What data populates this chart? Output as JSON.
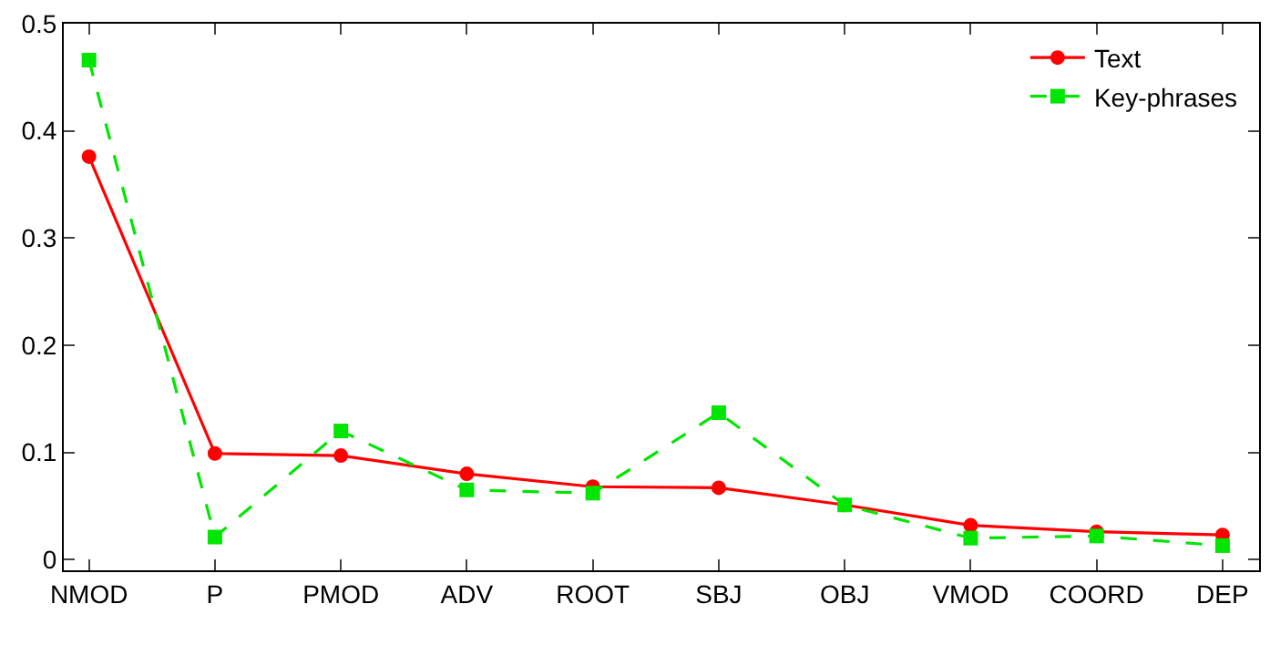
{
  "chart_data": {
    "type": "line",
    "categories": [
      "NMOD",
      "P",
      "PMOD",
      "ADV",
      "ROOT",
      "SBJ",
      "OBJ",
      "VMOD",
      "COORD",
      "DEP"
    ],
    "series": [
      {
        "name": "Text",
        "color": "#ff0000",
        "values": [
          0.376,
          0.099,
          0.097,
          0.08,
          0.068,
          0.067,
          0.051,
          0.032,
          0.026,
          0.023
        ],
        "marker": "circle",
        "line_style": "solid"
      },
      {
        "name": "Key-phrases",
        "color": "#00e600",
        "values": [
          0.466,
          0.021,
          0.12,
          0.065,
          0.062,
          0.137,
          0.051,
          0.02,
          0.022,
          0.013
        ],
        "marker": "square",
        "line_style": "dashed"
      }
    ],
    "ylim": [
      -0.01,
      0.5
    ],
    "yticks": [
      0,
      0.1,
      0.2,
      0.3,
      0.4,
      0.5
    ],
    "legend": "top right"
  }
}
